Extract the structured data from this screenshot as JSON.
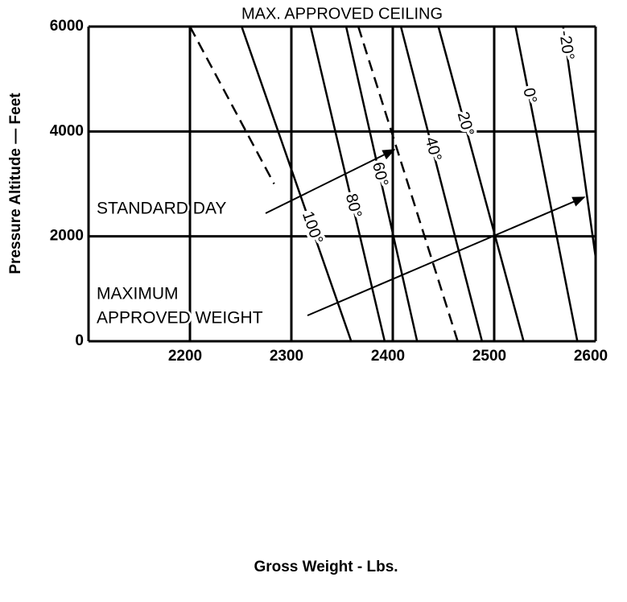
{
  "chart_data": {
    "type": "line",
    "title": "MAX. APPROVED CEILING",
    "xlabel": "Gross Weight - Lbs.",
    "ylabel": "Pressure Altitude — Feet",
    "xlim": [
      2100,
      2600
    ],
    "xticks": [
      2200,
      2300,
      2400,
      2500,
      2600
    ],
    "ylim": [
      0,
      6000
    ],
    "yticks": [
      0,
      2000,
      4000,
      6000
    ],
    "grid": true,
    "annotations": [
      "STANDARD DAY",
      "MAXIMUM",
      "APPROVED WEIGHT"
    ],
    "series": [
      {
        "name": "100°",
        "color": "#000000",
        "x": [
          2251,
          2359
        ],
        "values": [
          6000,
          0
        ]
      },
      {
        "name": "80°",
        "color": "#000000",
        "x": [
          2319,
          2392
        ],
        "values": [
          6000,
          0
        ]
      },
      {
        "name": "60°",
        "color": "#000000",
        "x": [
          2354,
          2424
        ],
        "values": [
          6000,
          0
        ]
      },
      {
        "name": "40°",
        "color": "#000000",
        "x": [
          2408,
          2488
        ],
        "values": [
          6000,
          0
        ]
      },
      {
        "name": "20°",
        "color": "#000000",
        "x": [
          2445,
          2529
        ],
        "values": [
          6000,
          0
        ]
      },
      {
        "name": "0°",
        "color": "#000000",
        "x": [
          2521,
          2582
        ],
        "values": [
          6000,
          0
        ]
      },
      {
        "name": "-20°",
        "color": "#000000",
        "x": [
          2568,
          2600
        ],
        "values": [
          6000,
          1600
        ]
      },
      {
        "color": "#000000",
        "dashed": true,
        "x": [
          2200,
          2283
        ],
        "values": [
          6000,
          3000
        ]
      },
      {
        "color": "#000000",
        "dashed": true,
        "x": [
          2366,
          2464
        ],
        "values": [
          6000,
          0
        ]
      }
    ]
  }
}
